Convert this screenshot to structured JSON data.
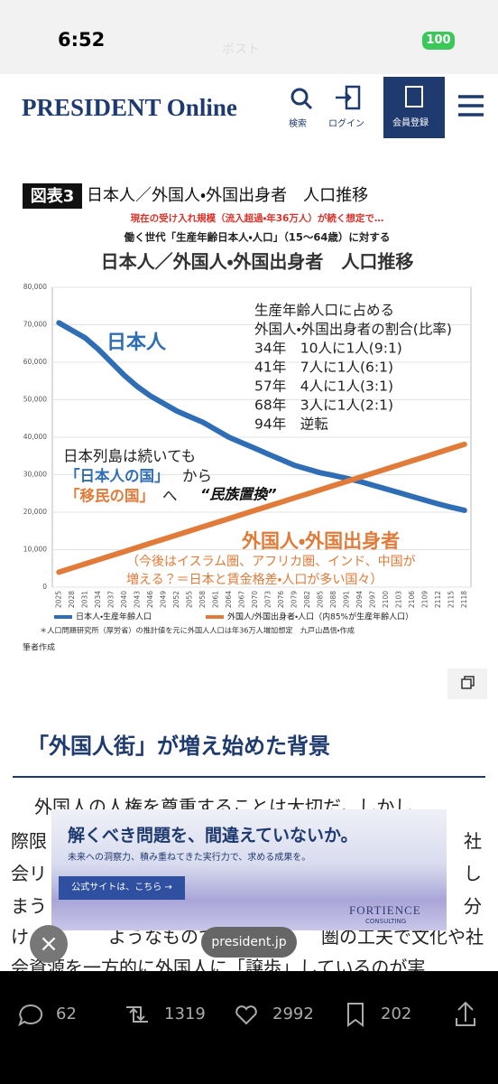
{
  "status_bar": {
    "time": "6:52",
    "battery": "100",
    "page_label": "ポスト"
  },
  "header": {
    "logo": "PRESIDENT Online",
    "nav": [
      "検索",
      "ログイン",
      "会員登録"
    ]
  },
  "chart_data": {
    "type": "line",
    "figure_label": "図表3",
    "title": "日本人／外国人・外国出身者　人口推移",
    "subtitle": "現在の受け入れ規模（流入超過・年36万人）が続く想定で…",
    "subtitle2": "働く世代「生産年齢日本人・人口」（15〜64歳）に対する",
    "heading": "日本人／外国人・外国出身者　人口推移",
    "categories": [
      "2025",
      "2028",
      "2031",
      "2034",
      "2037",
      "2040",
      "2043",
      "2046",
      "2049",
      "2052",
      "2055",
      "2058",
      "2061",
      "2064",
      "2067",
      "2070",
      "2073",
      "2076",
      "2079",
      "2082",
      "2085",
      "2088",
      "2091",
      "2094",
      "2097",
      "2100",
      "2103",
      "2106",
      "2109",
      "2112",
      "2115",
      "2118"
    ],
    "series": [
      {
        "name": "日本人・生産年齢人口",
        "color": "#2f6db5",
        "values": [
          70500,
          68500,
          66500,
          63500,
          60000,
          56500,
          53500,
          51000,
          49000,
          47000,
          45500,
          44000,
          42000,
          40000,
          38500,
          37000,
          35500,
          34000,
          32500,
          31500,
          30500,
          29800,
          29000,
          28200,
          27200,
          26200,
          25200,
          24200,
          23200,
          22200,
          21300,
          20500
        ]
      },
      {
        "name": "外国人/外国出身者・人口（内85%が生産年齢人口）",
        "color": "#e07b39",
        "values": [
          4000,
          5100,
          6200,
          7300,
          8400,
          9500,
          10600,
          11700,
          12800,
          13900,
          15000,
          16100,
          17200,
          18300,
          19400,
          20500,
          21600,
          22700,
          23800,
          24900,
          26000,
          27100,
          28200,
          29300,
          30400,
          31500,
          32600,
          33700,
          34800,
          35900,
          37000,
          38100
        ]
      }
    ],
    "ylim": [
      0,
      80000
    ],
    "yticks": [
      0,
      {
        "value": 10000,
        "label": "10,000"
      },
      {
        "value": 20000,
        "label": "20,000"
      },
      {
        "value": 30000,
        "label": "30,000"
      },
      {
        "value": 40000,
        "label": "40,000"
      },
      {
        "value": 50000,
        "label": "50,000"
      },
      {
        "value": 60000,
        "label": "60,000"
      },
      {
        "value": 70000,
        "label": "70,000"
      },
      {
        "value": 80000,
        "label": "80,000"
      }
    ],
    "grid": true,
    "annotations": {
      "japanese": "日本人",
      "ratio_lines": [
        "生産年齢人口に占める",
        "外国人・外国出身者の割合(比率)",
        "34年　10人に1人(9:1)",
        "41年　7人に1人(6:1)",
        "57年　4人に1人(3:1)",
        "68年　3人に1人(2:1)",
        "94年　逆転"
      ],
      "archipelago": "日本列島は続いても",
      "nation_a": "「日本人の国」",
      "from": "から",
      "nation_b": "「移民の国」",
      "to": "へ",
      "replacement": "“民族置換”",
      "foreign": "外国人・外国出身者",
      "foreign_note": [
        "（今後はイスラム圏、アフリカ圏、インド、中国が",
        "増える？＝日本と賃金格差・人口が多い国々）"
      ]
    },
    "footnote": "＊人口問題研究所（厚労省）の推計値を元に外国人人口は年36万人増加想定　九戸山昌信・作成",
    "source": "筆者作成"
  },
  "article": {
    "heading": "「外国人街」が増え始めた背景",
    "body": [
      {
        "text": "外国人の人権を尊重することは大切だ。しかし、",
        "x": 38,
        "y": 890
      },
      {
        "text": "際限",
        "x": 12,
        "y": 928
      },
      {
        "text": "社",
        "x": 514,
        "y": 928
      },
      {
        "text": "会リ",
        "x": 12,
        "y": 964
      },
      {
        "text": "し",
        "x": 514,
        "y": 964
      },
      {
        "text": "まう",
        "x": 12,
        "y": 1000
      },
      {
        "text": "分",
        "x": 514,
        "y": 1000
      },
      {
        "text": "け",
        "x": 12,
        "y": 1034
      },
      {
        "text": "ようなものでは",
        "x": 120,
        "y": 1034
      },
      {
        "text": "圏の工夫で文化や社",
        "x": 356,
        "y": 1034
      },
      {
        "text": "会資源を一方的に外国人に「譲歩」しているのが実",
        "x": 12,
        "y": 1068
      }
    ]
  },
  "ad": {
    "headline": "解くべき問題を、間違えていないか。",
    "tagline": "未来への洞察力、積み重ねてきた実行力で、求める成果を。",
    "cta": "公式サイトは、こちら →",
    "brand": "FORTIENCE",
    "brand_sub": "CONSULTING"
  },
  "overlay": {
    "url": "president.jp"
  },
  "actions": {
    "replies": 62,
    "reposts": 1319,
    "likes": 2992,
    "bookmarks": 202
  }
}
